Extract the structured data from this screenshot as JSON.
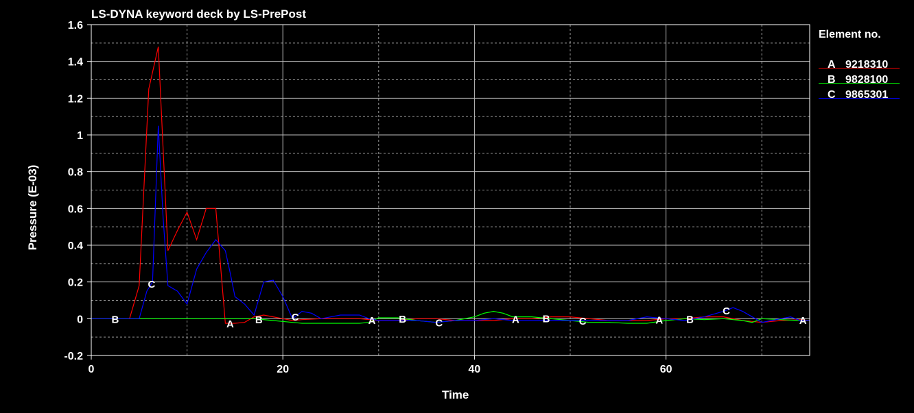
{
  "chart_data": {
    "type": "line",
    "title": "LS-DYNA keyword deck by LS-PrePost",
    "xlabel": "Time",
    "ylabel": "Pressure (E-03)",
    "xlim": [
      0,
      75
    ],
    "ylim": [
      -0.2,
      1.6
    ],
    "x_ticks": [
      0,
      20,
      40,
      60
    ],
    "y_ticks": [
      -0.2,
      0,
      0.2,
      0.4,
      0.6,
      0.8,
      1,
      1.2,
      1.4,
      1.6
    ],
    "y_tick_labels": [
      "-0.2",
      "0",
      "0.2",
      "0.4",
      "0.6",
      "0.8",
      "1",
      "1.2",
      "1.4",
      "1.6"
    ],
    "grid": true,
    "legend": {
      "title": "Element no.",
      "placement": "right"
    },
    "series": [
      {
        "name": "9218310",
        "letter": "A",
        "color": "#ff0000",
        "x": [
          0,
          4,
          5,
          6,
          7,
          8,
          9,
          10,
          11,
          12,
          13,
          14,
          15,
          16,
          17,
          18,
          19,
          20,
          21,
          22,
          24,
          26,
          28,
          30,
          32,
          34,
          36,
          38,
          40,
          42,
          44,
          46,
          48,
          50,
          52,
          54,
          56,
          58,
          60,
          62,
          64,
          66,
          68,
          70,
          72,
          74,
          75
        ],
        "y": [
          0,
          0,
          0.18,
          1.25,
          1.48,
          0.37,
          0.48,
          0.58,
          0.43,
          0.6,
          0.6,
          -0.025,
          -0.025,
          -0.02,
          0.01,
          0.02,
          0.01,
          0,
          -0.01,
          -0.005,
          0,
          0,
          0,
          -0.01,
          -0.01,
          0,
          0,
          -0.01,
          -0.01,
          -0.01,
          0,
          0,
          0.01,
          0.01,
          0,
          -0.01,
          -0.01,
          -0.01,
          0,
          0,
          0.01,
          0.01,
          -0.01,
          -0.02,
          -0.01,
          -0.005,
          -0.01
        ],
        "marker_x": [
          14.5,
          29.3,
          44.3,
          59.3,
          74.3
        ]
      },
      {
        "name": "9828100",
        "letter": "B",
        "color": "#00ff00",
        "x": [
          0,
          17,
          19,
          21,
          22,
          24,
          26,
          28,
          29,
          30,
          32,
          34,
          36,
          38,
          40,
          41,
          42,
          43,
          44,
          46,
          48,
          50,
          52,
          54,
          56,
          58,
          60,
          62,
          64,
          66,
          68,
          69,
          70,
          72,
          74,
          75
        ],
        "y": [
          0,
          0,
          -0.01,
          -0.02,
          -0.025,
          -0.025,
          -0.025,
          -0.025,
          -0.02,
          0.005,
          0.005,
          -0.01,
          -0.02,
          -0.01,
          0.01,
          0.03,
          0.04,
          0.03,
          0.01,
          0.01,
          0,
          -0.01,
          -0.02,
          -0.02,
          -0.025,
          -0.025,
          -0.01,
          0,
          -0.005,
          0,
          -0.01,
          -0.02,
          0,
          -0.005,
          -0.01,
          -0.01
        ],
        "marker_x": [
          2.5,
          17.5,
          32.5,
          47.5,
          62.5
        ]
      },
      {
        "name": "9865301",
        "letter": "C",
        "color": "#0000ff",
        "x": [
          0,
          5,
          5.8,
          6.4,
          7,
          7.5,
          8,
          9,
          10,
          11,
          12,
          13,
          14,
          14.5,
          15,
          16,
          17,
          18,
          19,
          20,
          21,
          22,
          23,
          24,
          26,
          28,
          29,
          30,
          32,
          34,
          36,
          38,
          40,
          42,
          44,
          46,
          48,
          50,
          52,
          54,
          56,
          58,
          60,
          62,
          64,
          66,
          67,
          68,
          70,
          72,
          73,
          74,
          75
        ],
        "y": [
          0,
          0,
          0.15,
          0.2,
          1.05,
          0.55,
          0.18,
          0.15,
          0.08,
          0.27,
          0.36,
          0.43,
          0.37,
          0.25,
          0.12,
          0.08,
          0.02,
          0.2,
          0.21,
          0.12,
          0,
          0.04,
          0.03,
          0,
          0.02,
          0.02,
          0,
          -0.01,
          -0.01,
          -0.01,
          -0.02,
          -0.01,
          -0.01,
          0,
          -0.01,
          -0.01,
          -0.01,
          -0.01,
          -0.01,
          -0.01,
          -0.01,
          0.01,
          0,
          -0.01,
          0.01,
          0.04,
          0.06,
          0.04,
          -0.02,
          0,
          0.01,
          -0.01,
          -0.01
        ],
        "marker_x": [
          6.3,
          21.3,
          36.3,
          51.3,
          66.3
        ]
      }
    ]
  }
}
